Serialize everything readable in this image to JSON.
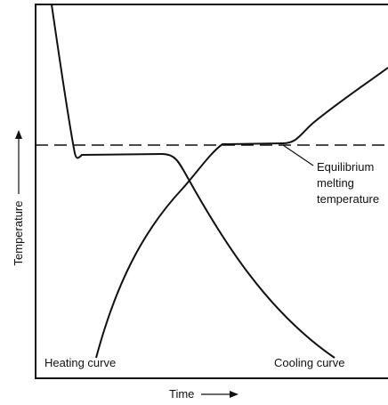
{
  "axes": {
    "y_label": "Temperature",
    "x_label": "Time"
  },
  "curves": {
    "heating": "Heating curve",
    "cooling": "Cooling curve"
  },
  "annotation": {
    "lines": [
      "Equilibrium",
      "melting",
      "temperature"
    ]
  }
}
